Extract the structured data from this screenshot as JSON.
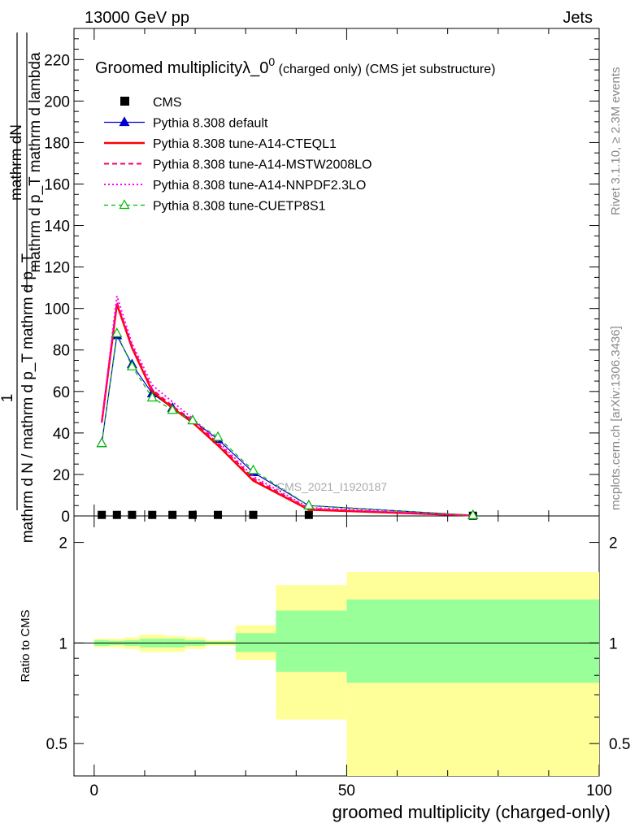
{
  "header": {
    "left": "13000 GeV pp",
    "right": "Jets"
  },
  "side_texts": {
    "rivet": "Rivet 3.1.10, ≥ 2.3M events",
    "mcplots": "mcplots.cern.ch [arXiv:1306.3436]"
  },
  "watermark": "CMS_2021_I1920187",
  "colors": {
    "cms": "#000000",
    "default": "#0000cc",
    "cteql1": "#ff0000",
    "mstw": "#ff0066",
    "nnpdf": "#ff00ff",
    "cuetp8s1": "#00bb00",
    "band_yellow": "#ffff99",
    "band_green": "#99ff99"
  },
  "chart_data": [
    {
      "type": "line",
      "title_main": "Groomed multiplicityλ_0",
      "title_sup": "0",
      "title_tail": " (charged only) (CMS jet substructure)",
      "ylabel_parts": {
        "num": "mathrm dN",
        "den": "mathrm d p_T mathrm d lambda",
        "den_prefix": "mathrm d N / mathrm d p",
        "den_sub": "T",
        "den_suffix": "mathrm d p",
        "frac_top": "1",
        "frac_bottom": "mathrm d N / mathrm d p_T"
      },
      "ylabel_lines": [
        "mathrm dN",
        "mathrm d p_T mathrm d lambda",
        "1",
        "mathrm d N / mathrm d p_T mathrm d p_T"
      ],
      "ylim": [
        0,
        235
      ],
      "xlim": [
        -4,
        100
      ],
      "y_ticks": [
        0,
        20,
        40,
        60,
        80,
        100,
        120,
        140,
        160,
        180,
        200,
        220
      ],
      "legend_position": "top-left",
      "series": [
        {
          "name": "CMS",
          "key": "cms",
          "style": "marker-square",
          "x": [
            1.5,
            4.5,
            7.5,
            11.5,
            15.5,
            19.5,
            24.5,
            31.5,
            42.5,
            75
          ],
          "y": [
            0.5,
            0.5,
            0.5,
            0.5,
            0.5,
            0.5,
            0.5,
            0.5,
            0.5,
            0.1
          ]
        },
        {
          "name": "Pythia 8.308 default",
          "key": "default",
          "style": "solid-triangle",
          "x": [
            1.5,
            4.5,
            7.5,
            11.5,
            15.5,
            19.5,
            24.5,
            31.5,
            42.5,
            75
          ],
          "y": [
            35,
            87,
            73,
            59,
            52,
            46,
            37,
            21,
            5,
            0.3
          ]
        },
        {
          "name": "Pythia 8.308 tune-A14-CTEQL1",
          "key": "cteql1",
          "style": "solid-thick",
          "x": [
            1.5,
            4.5,
            7.5,
            11.5,
            15.5,
            19.5,
            24.5,
            31.5,
            42.5,
            75
          ],
          "y": [
            45,
            102,
            81,
            60,
            52,
            45,
            34,
            17,
            3,
            0.2
          ]
        },
        {
          "name": "Pythia 8.308 tune-A14-MSTW2008LO",
          "key": "mstw",
          "style": "dashed",
          "x": [
            1.5,
            4.5,
            7.5,
            11.5,
            15.5,
            19.5,
            24.5,
            31.5,
            42.5,
            75
          ],
          "y": [
            45,
            103,
            82,
            61,
            53,
            46,
            35,
            18,
            3.5,
            0.2
          ]
        },
        {
          "name": "Pythia 8.308 tune-A14-NNPDF2.3LO",
          "key": "nnpdf",
          "style": "dotted",
          "x": [
            1.5,
            4.5,
            7.5,
            11.5,
            15.5,
            19.5,
            24.5,
            31.5,
            42.5,
            75
          ],
          "y": [
            45,
            106,
            83,
            63,
            55,
            47,
            36,
            19,
            4,
            0.2
          ]
        },
        {
          "name": "Pythia 8.308 tune-CUETP8S1",
          "key": "cuetp8s1",
          "style": "dashed-open-triangle",
          "x": [
            1.5,
            4.5,
            7.5,
            11.5,
            15.5,
            19.5,
            24.5,
            31.5,
            42.5,
            75
          ],
          "y": [
            35,
            88,
            72,
            57,
            51,
            46,
            38,
            22,
            5,
            0.3
          ]
        }
      ]
    },
    {
      "type": "area",
      "ylabel": "Ratio to CMS",
      "xlabel": "groomed multiplicity (charged-only)",
      "log_y": true,
      "ylim": [
        0.4,
        2.4
      ],
      "xlim": [
        -4,
        100
      ],
      "x_ticks": [
        0,
        50,
        100
      ],
      "y_ticks": [
        0.5,
        1,
        2
      ],
      "bands": [
        {
          "x0": 0,
          "x1": 3,
          "yellow": [
            0.97,
            1.03
          ],
          "green": [
            0.98,
            1.02
          ]
        },
        {
          "x0": 3,
          "x1": 6,
          "yellow": [
            0.97,
            1.03
          ],
          "green": [
            0.985,
            1.015
          ]
        },
        {
          "x0": 6,
          "x1": 9,
          "yellow": [
            0.96,
            1.04
          ],
          "green": [
            0.98,
            1.02
          ]
        },
        {
          "x0": 9,
          "x1": 14,
          "yellow": [
            0.94,
            1.06
          ],
          "green": [
            0.97,
            1.03
          ]
        },
        {
          "x0": 14,
          "x1": 18,
          "yellow": [
            0.94,
            1.05
          ],
          "green": [
            0.97,
            1.03
          ]
        },
        {
          "x0": 18,
          "x1": 22,
          "yellow": [
            0.96,
            1.04
          ],
          "green": [
            0.98,
            1.02
          ]
        },
        {
          "x0": 22,
          "x1": 28,
          "yellow": [
            0.98,
            1.02
          ],
          "green": [
            0.99,
            1.01
          ]
        },
        {
          "x0": 28,
          "x1": 36,
          "yellow": [
            0.89,
            1.13
          ],
          "green": [
            0.94,
            1.07
          ]
        },
        {
          "x0": 36,
          "x1": 50,
          "yellow": [
            0.59,
            1.49
          ],
          "green": [
            0.82,
            1.25
          ]
        },
        {
          "x0": 50,
          "x1": 100,
          "yellow": [
            0.4,
            1.63
          ],
          "green": [
            0.76,
            1.35
          ]
        }
      ]
    }
  ]
}
